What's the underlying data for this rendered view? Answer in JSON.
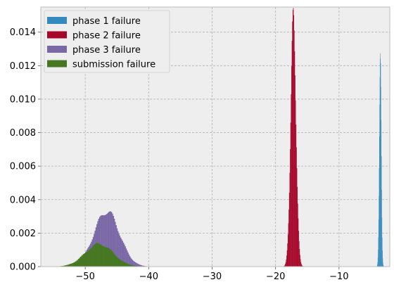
{
  "chart_data": {
    "type": "bar",
    "title": "",
    "xlabel": "",
    "ylabel": "",
    "xlim": [
      -57,
      -2
    ],
    "ylim": [
      0,
      0.0155
    ],
    "grid": true,
    "legend_placement": "top-left",
    "x_ticks": [
      -50,
      -40,
      -30,
      -20,
      -10
    ],
    "x_tick_labels": [
      "−50",
      "−40",
      "−30",
      "−20",
      "−10"
    ],
    "y_ticks": [
      0,
      0.002,
      0.004,
      0.006,
      0.008,
      0.01,
      0.012,
      0.014
    ],
    "y_tick_labels": [
      "0.000",
      "0.002",
      "0.004",
      "0.006",
      "0.008",
      "0.010",
      "0.012",
      "0.014"
    ],
    "series": [
      {
        "name": "phase 1 failure",
        "color": "#348ABD",
        "distribution": "gaussian",
        "center": -3.5,
        "spread": 0.15,
        "peak": 0.0128,
        "range": [
          -4.1,
          -2.9
        ],
        "bins": 30
      },
      {
        "name": "phase 2 failure",
        "color": "#A60628",
        "distribution": "gaussian",
        "center": -17.2,
        "spread": 0.42,
        "peak": 0.0147,
        "range": [
          -19.2,
          -15.0
        ],
        "bins": 60
      },
      {
        "name": "phase 3 failure",
        "color": "#7A68A6",
        "distribution": "gaussian",
        "center": -46.6,
        "spread": 2.0,
        "peak": 0.0033,
        "range": [
          -53.0,
          -40.0
        ],
        "bins": 90
      },
      {
        "name": "submission failure",
        "color": "#467821",
        "distribution": "gaussian",
        "center": -47.8,
        "spread": 2.2,
        "peak": 0.00135,
        "range": [
          -55.0,
          -41.0
        ],
        "bins": 90
      }
    ]
  }
}
